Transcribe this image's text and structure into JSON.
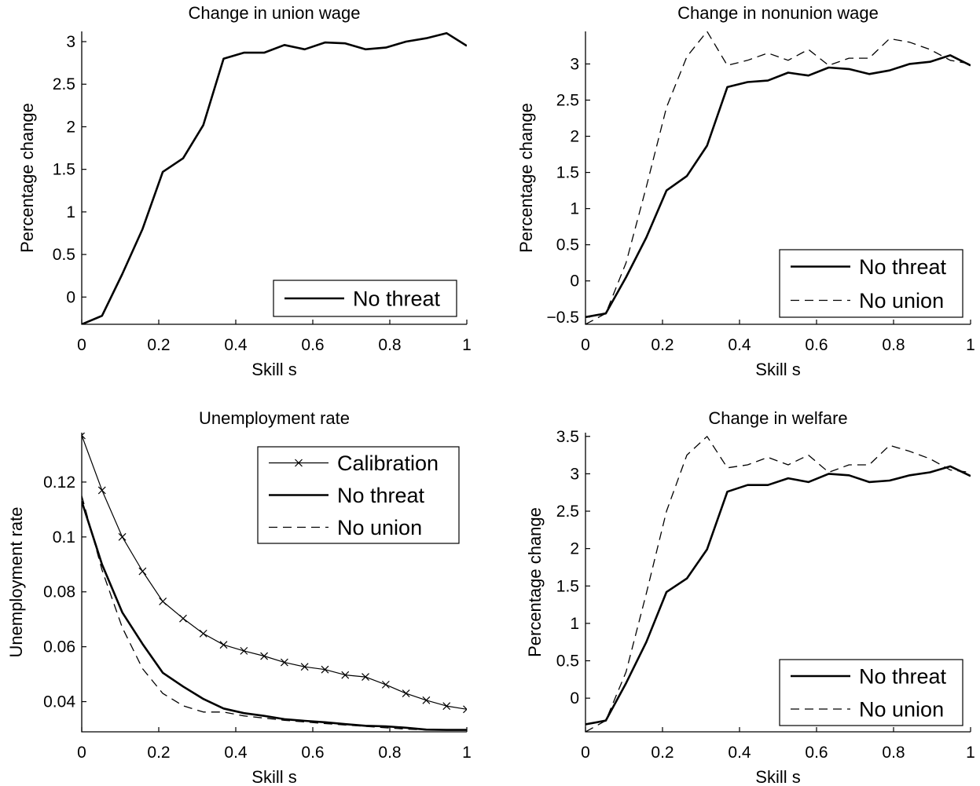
{
  "chart_data": [
    {
      "type": "line",
      "title": "Change in union wage",
      "xlabel": "Skill s",
      "ylabel": "Percentage change",
      "xlim": [
        0,
        1
      ],
      "ylim": [
        -0.32,
        3.12
      ],
      "xticks": [
        "0",
        "0.2",
        "0.4",
        "0.6",
        "0.8",
        "1"
      ],
      "yticks": [
        "0",
        "0.5",
        "1",
        "1.5",
        "2",
        "2.5",
        "3"
      ],
      "grid": false,
      "legend_position": "bottom-right",
      "x": [
        0,
        0.0526,
        0.1053,
        0.1579,
        0.2105,
        0.2632,
        0.3158,
        0.3684,
        0.4211,
        0.4737,
        0.5263,
        0.5789,
        0.6316,
        0.6842,
        0.7368,
        0.7895,
        0.8421,
        0.8947,
        0.9474,
        1
      ],
      "series": [
        {
          "name": "No threat",
          "style": "solid-thick",
          "values": [
            -0.32,
            -0.22,
            0.27,
            0.8,
            1.47,
            1.63,
            2.02,
            2.8,
            2.87,
            2.87,
            2.96,
            2.91,
            2.99,
            2.98,
            2.91,
            2.93,
            3.0,
            3.04,
            3.1,
            2.95
          ]
        }
      ]
    },
    {
      "type": "line",
      "title": "Change in nonunion wage",
      "xlabel": "Skill s",
      "ylabel": "Percentage change",
      "xlim": [
        0,
        1
      ],
      "ylim": [
        -0.6,
        3.45
      ],
      "xticks": [
        "0",
        "0.2",
        "0.4",
        "0.6",
        "0.8",
        "1"
      ],
      "yticks": [
        "−0.5",
        "0",
        "0.5",
        "1",
        "1.5",
        "2",
        "2.5",
        "3"
      ],
      "grid": false,
      "legend_position": "bottom-right",
      "x": [
        0,
        0.0526,
        0.1053,
        0.1579,
        0.2105,
        0.2632,
        0.3158,
        0.3684,
        0.4211,
        0.4737,
        0.5263,
        0.5789,
        0.6316,
        0.6842,
        0.7368,
        0.7895,
        0.8421,
        0.8947,
        0.9474,
        1
      ],
      "series": [
        {
          "name": "No threat",
          "style": "solid-thick",
          "values": [
            -0.5,
            -0.45,
            0.05,
            0.6,
            1.25,
            1.45,
            1.87,
            2.68,
            2.75,
            2.77,
            2.88,
            2.84,
            2.95,
            2.93,
            2.86,
            2.91,
            3.0,
            3.03,
            3.12,
            2.98
          ]
        },
        {
          "name": "No union",
          "style": "dashed",
          "values": [
            -0.6,
            -0.45,
            0.25,
            1.3,
            2.4,
            3.1,
            3.45,
            2.98,
            3.05,
            3.15,
            3.05,
            3.2,
            2.98,
            3.08,
            3.08,
            3.35,
            3.3,
            3.2,
            3.05,
            3.0
          ]
        }
      ]
    },
    {
      "type": "line",
      "title": "Unemployment rate",
      "xlabel": "Skill s",
      "ylabel": "Unemployment rate",
      "xlim": [
        0,
        1
      ],
      "ylim": [
        0.029,
        0.138
      ],
      "xticks": [
        "0",
        "0.2",
        "0.4",
        "0.6",
        "0.8",
        "1"
      ],
      "yticks": [
        "0.04",
        "0.06",
        "0.08",
        "0.1",
        "0.12"
      ],
      "grid": false,
      "legend_position": "top-right",
      "x": [
        0,
        0.0526,
        0.1053,
        0.1579,
        0.2105,
        0.2632,
        0.3158,
        0.3684,
        0.4211,
        0.4737,
        0.5263,
        0.5789,
        0.6316,
        0.6842,
        0.7368,
        0.7895,
        0.8421,
        0.8947,
        0.9474,
        1
      ],
      "series": [
        {
          "name": "Calibration",
          "style": "solid-thin-x",
          "values": [
            0.137,
            0.117,
            0.1,
            0.0875,
            0.0765,
            0.0703,
            0.0648,
            0.0607,
            0.0585,
            0.0566,
            0.0543,
            0.0527,
            0.0517,
            0.0497,
            0.049,
            0.0462,
            0.043,
            0.0405,
            0.0384,
            0.0372
          ]
        },
        {
          "name": "No threat",
          "style": "solid-thick",
          "values": [
            0.113,
            0.09,
            0.0725,
            0.061,
            0.0505,
            0.0455,
            0.041,
            0.0375,
            0.0358,
            0.0348,
            0.0336,
            0.033,
            0.0325,
            0.0318,
            0.0312,
            0.031,
            0.0305,
            0.0298,
            0.0297,
            0.0297
          ]
        },
        {
          "name": "No union",
          "style": "dashed",
          "values": [
            0.115,
            0.088,
            0.067,
            0.052,
            0.043,
            0.0385,
            0.0362,
            0.0362,
            0.0348,
            0.034,
            0.0332,
            0.0326,
            0.032,
            0.0315,
            0.031,
            0.0305,
            0.03,
            0.0297,
            0.0296,
            0.0296
          ]
        }
      ]
    },
    {
      "type": "line",
      "title": "Change in welfare",
      "xlabel": "Skill s",
      "ylabel": "Percentage change",
      "xlim": [
        0,
        1
      ],
      "ylim": [
        -0.45,
        3.55
      ],
      "xticks": [
        "0",
        "0.2",
        "0.4",
        "0.6",
        "0.8",
        "1"
      ],
      "yticks": [
        "0",
        "0.5",
        "1",
        "1.5",
        "2",
        "2.5",
        "3",
        "3.5"
      ],
      "grid": false,
      "legend_position": "bottom-right",
      "x": [
        0,
        0.0526,
        0.1053,
        0.1579,
        0.2105,
        0.2632,
        0.3158,
        0.3684,
        0.4211,
        0.4737,
        0.5263,
        0.5789,
        0.6316,
        0.6842,
        0.7368,
        0.7895,
        0.8421,
        0.8947,
        0.9474,
        1
      ],
      "series": [
        {
          "name": "No threat",
          "style": "solid-thick",
          "values": [
            -0.35,
            -0.3,
            0.2,
            0.75,
            1.42,
            1.6,
            1.99,
            2.76,
            2.85,
            2.85,
            2.94,
            2.89,
            3.0,
            2.98,
            2.89,
            2.91,
            2.98,
            3.02,
            3.1,
            2.97
          ]
        },
        {
          "name": "No union",
          "style": "dashed",
          "values": [
            -0.45,
            -0.3,
            0.35,
            1.4,
            2.5,
            3.25,
            3.5,
            3.08,
            3.12,
            3.22,
            3.12,
            3.25,
            3.02,
            3.12,
            3.12,
            3.38,
            3.3,
            3.2,
            3.05,
            3.02
          ]
        }
      ]
    }
  ]
}
